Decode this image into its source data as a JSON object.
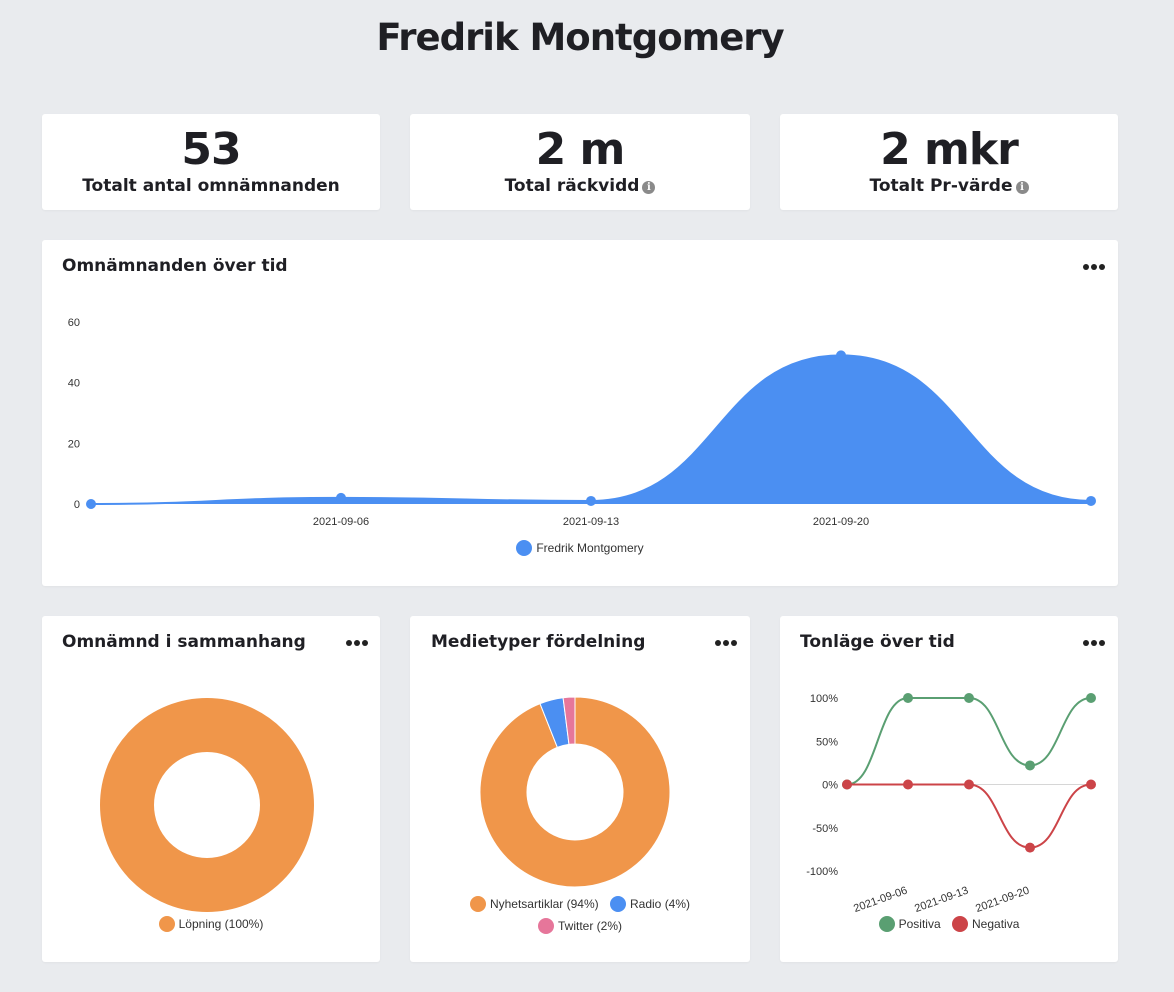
{
  "title": "Fredrik Montgomery",
  "kpis": [
    {
      "value": "53",
      "label": "Totalt antal omnämnanden"
    },
    {
      "value": "2 m",
      "label": "Total räckvidd"
    },
    {
      "value": "2 mkr",
      "label": "Totalt Pr-värde"
    }
  ],
  "info_icon_glyph": "i",
  "colors": {
    "accent_blue": "#4b8ff2",
    "orange": "#f0964a",
    "pink": "#e6769a",
    "green": "#5a9f72",
    "red": "#cc4448"
  },
  "cards": {
    "mentions_over_time": {
      "title": "Omnämnanden över tid"
    },
    "context": {
      "title": "Omnämnd i sammanhang"
    },
    "media_types": {
      "title": "Medietyper fördelning"
    },
    "tone": {
      "title": "Tonläge över tid"
    }
  },
  "chart_data": [
    {
      "type": "area",
      "title": "Omnämnanden över tid",
      "x": [
        "2021-08-30",
        "2021-09-06",
        "2021-09-13",
        "2021-09-20",
        "2021-09-27"
      ],
      "x_tick_labels": [
        "2021-09-06",
        "2021-09-13",
        "2021-09-20"
      ],
      "series": [
        {
          "name": "Fredrik Montgomery",
          "values": [
            0,
            2,
            1,
            49,
            1
          ]
        }
      ],
      "ylim": [
        0,
        60
      ],
      "y_ticks": [
        "0",
        "20",
        "40",
        "60"
      ],
      "legend": "bottom"
    },
    {
      "type": "pie",
      "title": "Omnämnd i sammanhang",
      "slices": [
        {
          "label": "Löpning (100%)",
          "value": 100
        }
      ],
      "legend": "bottom"
    },
    {
      "type": "pie",
      "title": "Medietyper fördelning",
      "slices": [
        {
          "label": "Nyhetsartiklar (94%)",
          "value": 94
        },
        {
          "label": "Radio (4%)",
          "value": 4
        },
        {
          "label": "Twitter (2%)",
          "value": 2
        }
      ],
      "legend": "bottom"
    },
    {
      "type": "line",
      "title": "Tonläge över tid",
      "x": [
        "2021-08-30",
        "2021-09-06",
        "2021-09-13",
        "2021-09-20",
        "2021-09-27"
      ],
      "x_tick_labels": [
        "2021-09-06",
        "2021-09-13",
        "2021-09-20"
      ],
      "series": [
        {
          "name": "Positiva",
          "values": [
            0,
            100,
            100,
            22,
            100
          ]
        },
        {
          "name": "Negativa",
          "values": [
            0,
            0,
            0,
            -73,
            0
          ]
        }
      ],
      "ylim": [
        -100,
        100
      ],
      "y_ticks": [
        "100%",
        "50%",
        "0%",
        "-50%",
        "-100%"
      ],
      "legend": "bottom"
    }
  ]
}
